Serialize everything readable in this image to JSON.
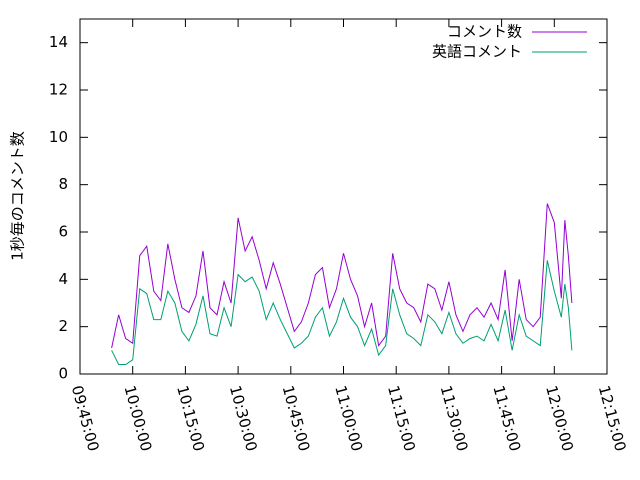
{
  "chart_data": {
    "type": "line",
    "y_label": "1秒毎のコメント数",
    "x": [
      "09:54:00",
      "09:56:00",
      "09:58:00",
      "10:00:00",
      "10:02:00",
      "10:04:00",
      "10:06:00",
      "10:08:00",
      "10:10:00",
      "10:12:00",
      "10:14:00",
      "10:16:00",
      "10:18:00",
      "10:20:00",
      "10:22:00",
      "10:24:00",
      "10:26:00",
      "10:28:00",
      "10:30:00",
      "10:32:00",
      "10:34:00",
      "10:36:00",
      "10:38:00",
      "10:40:00",
      "10:42:00",
      "10:44:00",
      "10:46:00",
      "10:48:00",
      "10:50:00",
      "10:52:00",
      "10:54:00",
      "10:56:00",
      "10:58:00",
      "11:00:00",
      "11:02:00",
      "11:04:00",
      "11:06:00",
      "11:08:00",
      "11:10:00",
      "11:12:00",
      "11:14:00",
      "11:16:00",
      "11:18:00",
      "11:20:00",
      "11:22:00",
      "11:24:00",
      "11:26:00",
      "11:28:00",
      "11:30:00",
      "11:32:00",
      "11:34:00",
      "11:36:00",
      "11:38:00",
      "11:40:00",
      "11:42:00",
      "11:44:00",
      "11:46:00",
      "11:48:00",
      "11:50:00",
      "11:52:00",
      "11:54:00",
      "11:56:00",
      "11:58:00",
      "12:00:00",
      "12:02:00",
      "12:03:00",
      "12:04:00",
      "12:05:00"
    ],
    "series": [
      {
        "name": "コメント数",
        "color": "#9400d3",
        "values": [
          1.1,
          2.5,
          1.5,
          1.3,
          5.0,
          5.4,
          3.5,
          3.1,
          5.5,
          4.0,
          2.8,
          2.6,
          3.3,
          5.2,
          2.8,
          2.5,
          3.9,
          3.0,
          6.6,
          5.2,
          5.8,
          4.8,
          3.6,
          4.7,
          3.8,
          2.8,
          1.8,
          2.2,
          3.0,
          4.2,
          4.5,
          2.8,
          3.6,
          5.1,
          4.0,
          3.3,
          2.0,
          3.0,
          1.2,
          1.6,
          5.1,
          3.6,
          3.0,
          2.8,
          2.2,
          3.8,
          3.6,
          2.7,
          3.9,
          2.5,
          1.8,
          2.5,
          2.8,
          2.4,
          3.0,
          2.3,
          4.4,
          1.4,
          4.0,
          2.3,
          2.0,
          2.4,
          7.2,
          6.4,
          3.2,
          6.5,
          5.0,
          3.0
        ]
      },
      {
        "name": "英語コメント",
        "color": "#009e73",
        "values": [
          1.0,
          0.4,
          0.4,
          0.6,
          3.6,
          3.4,
          2.3,
          2.3,
          3.5,
          3.0,
          1.8,
          1.4,
          2.1,
          3.3,
          1.7,
          1.6,
          2.8,
          2.0,
          4.2,
          3.9,
          4.1,
          3.5,
          2.3,
          3.0,
          2.3,
          1.7,
          1.1,
          1.3,
          1.6,
          2.4,
          2.8,
          1.6,
          2.2,
          3.2,
          2.4,
          2.0,
          1.2,
          1.9,
          0.8,
          1.2,
          3.6,
          2.5,
          1.7,
          1.5,
          1.2,
          2.5,
          2.2,
          1.7,
          2.6,
          1.7,
          1.3,
          1.5,
          1.6,
          1.4,
          2.1,
          1.4,
          2.7,
          1.0,
          2.5,
          1.6,
          1.4,
          1.2,
          4.8,
          3.5,
          2.4,
          3.8,
          2.8,
          1.0
        ]
      }
    ],
    "xlim": [
      "09:45:00",
      "12:15:00"
    ],
    "xticks": [
      "09:45:00",
      "10:00:00",
      "10:15:00",
      "10:30:00",
      "10:45:00",
      "11:00:00",
      "11:15:00",
      "11:30:00",
      "11:45:00",
      "12:00:00",
      "12:15:00"
    ],
    "ylim": [
      0,
      15
    ],
    "yticks": [
      0,
      2,
      4,
      6,
      8,
      10,
      12,
      14
    ],
    "legend": "top-right"
  }
}
